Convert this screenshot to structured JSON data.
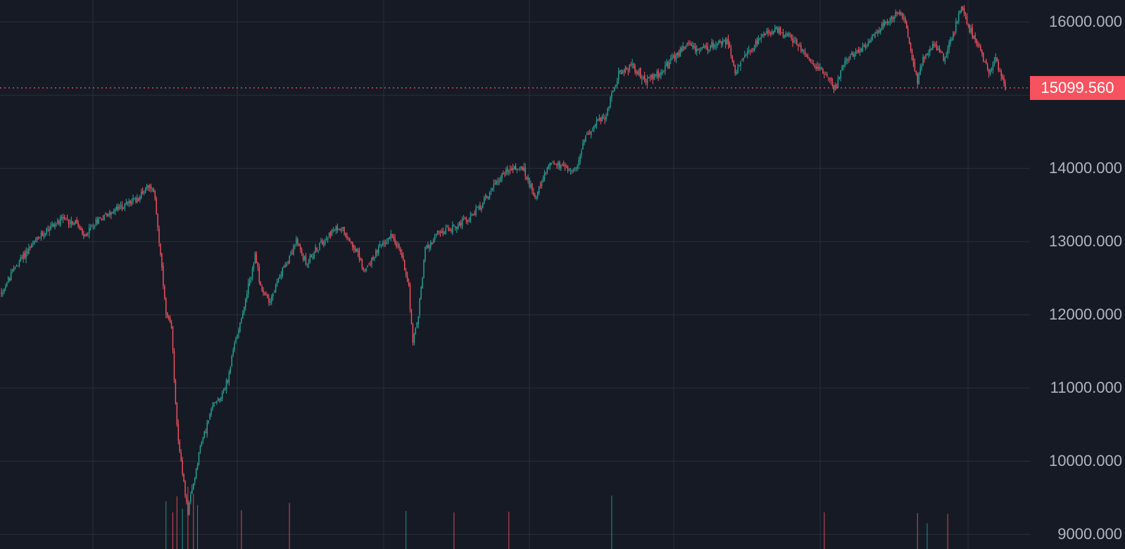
{
  "chart": {
    "last_price_label": "15099.560"
  },
  "colors": {
    "background": "#161A25",
    "grid": "#2A2E39",
    "up": "#26A69A",
    "down": "#F7525F",
    "axis_text": "#B2B5BE",
    "price_tag_bg": "#F7525F",
    "price_tag_text": "#FFFFFF"
  },
  "chart_data": {
    "type": "candlestick",
    "title": "",
    "xlabel": "",
    "ylabel": "",
    "ylim": [
      8800,
      16300
    ],
    "y_ticks": [
      "9000.000",
      "10000.000",
      "11000.000",
      "12000.000",
      "13000.000",
      "14000.000",
      "16000.000"
    ],
    "grid": true,
    "price_axis": "right",
    "last_price": 15099.56,
    "volume_bars": true,
    "close_anchors": [
      [
        0,
        12300
      ],
      [
        10,
        12650
      ],
      [
        20,
        12900
      ],
      [
        35,
        13200
      ],
      [
        45,
        13300
      ],
      [
        55,
        13250
      ],
      [
        60,
        13050
      ],
      [
        70,
        13300
      ],
      [
        80,
        13400
      ],
      [
        90,
        13500
      ],
      [
        100,
        13600
      ],
      [
        108,
        13800
      ],
      [
        112,
        13600
      ],
      [
        116,
        12800
      ],
      [
        120,
        12000
      ],
      [
        124,
        11800
      ],
      [
        128,
        10500
      ],
      [
        132,
        9800
      ],
      [
        136,
        9300
      ],
      [
        140,
        9700
      ],
      [
        145,
        10200
      ],
      [
        150,
        10500
      ],
      [
        155,
        10800
      ],
      [
        160,
        10900
      ],
      [
        165,
        11100
      ],
      [
        170,
        11600
      ],
      [
        178,
        12200
      ],
      [
        185,
        12800
      ],
      [
        190,
        12300
      ],
      [
        196,
        12200
      ],
      [
        205,
        12600
      ],
      [
        215,
        13000
      ],
      [
        222,
        12700
      ],
      [
        230,
        12900
      ],
      [
        238,
        13100
      ],
      [
        248,
        13200
      ],
      [
        258,
        12900
      ],
      [
        265,
        12600
      ],
      [
        275,
        12900
      ],
      [
        285,
        13100
      ],
      [
        292,
        12800
      ],
      [
        297,
        12400
      ],
      [
        300,
        11600
      ],
      [
        304,
        12000
      ],
      [
        309,
        12900
      ],
      [
        318,
        13100
      ],
      [
        330,
        13200
      ],
      [
        340,
        13300
      ],
      [
        350,
        13500
      ],
      [
        360,
        13800
      ],
      [
        370,
        14000
      ],
      [
        380,
        14000
      ],
      [
        390,
        13600
      ],
      [
        400,
        14100
      ],
      [
        410,
        14000
      ],
      [
        420,
        14000
      ],
      [
        425,
        14400
      ],
      [
        432,
        14600
      ],
      [
        440,
        14700
      ],
      [
        450,
        15300
      ],
      [
        460,
        15400
      ],
      [
        470,
        15200
      ],
      [
        480,
        15300
      ],
      [
        490,
        15500
      ],
      [
        500,
        15700
      ],
      [
        510,
        15600
      ],
      [
        520,
        15700
      ],
      [
        530,
        15750
      ],
      [
        535,
        15300
      ],
      [
        545,
        15600
      ],
      [
        555,
        15800
      ],
      [
        565,
        15900
      ],
      [
        575,
        15800
      ],
      [
        585,
        15600
      ],
      [
        592,
        15400
      ],
      [
        600,
        15300
      ],
      [
        608,
        15100
      ],
      [
        615,
        15500
      ],
      [
        625,
        15600
      ],
      [
        635,
        15800
      ],
      [
        645,
        16000
      ],
      [
        655,
        16150
      ],
      [
        660,
        15900
      ],
      [
        663,
        15600
      ],
      [
        668,
        15200
      ],
      [
        672,
        15500
      ],
      [
        680,
        15700
      ],
      [
        688,
        15500
      ],
      [
        695,
        15900
      ],
      [
        700,
        16200
      ],
      [
        706,
        15900
      ],
      [
        712,
        15700
      ],
      [
        720,
        15300
      ],
      [
        725,
        15500
      ],
      [
        732,
        15100
      ]
    ],
    "volume_spikes": [
      [
        120,
        9450
      ],
      [
        125,
        9300
      ],
      [
        128,
        9520
      ],
      [
        132,
        9350
      ],
      [
        136,
        9650
      ],
      [
        140,
        9550
      ],
      [
        143,
        9400
      ],
      [
        175,
        9330
      ],
      [
        210,
        9430
      ],
      [
        295,
        9320
      ],
      [
        330,
        9300
      ],
      [
        370,
        9310
      ],
      [
        445,
        9530
      ],
      [
        600,
        9300
      ],
      [
        668,
        9290
      ],
      [
        675,
        9150
      ],
      [
        690,
        9280
      ]
    ]
  }
}
